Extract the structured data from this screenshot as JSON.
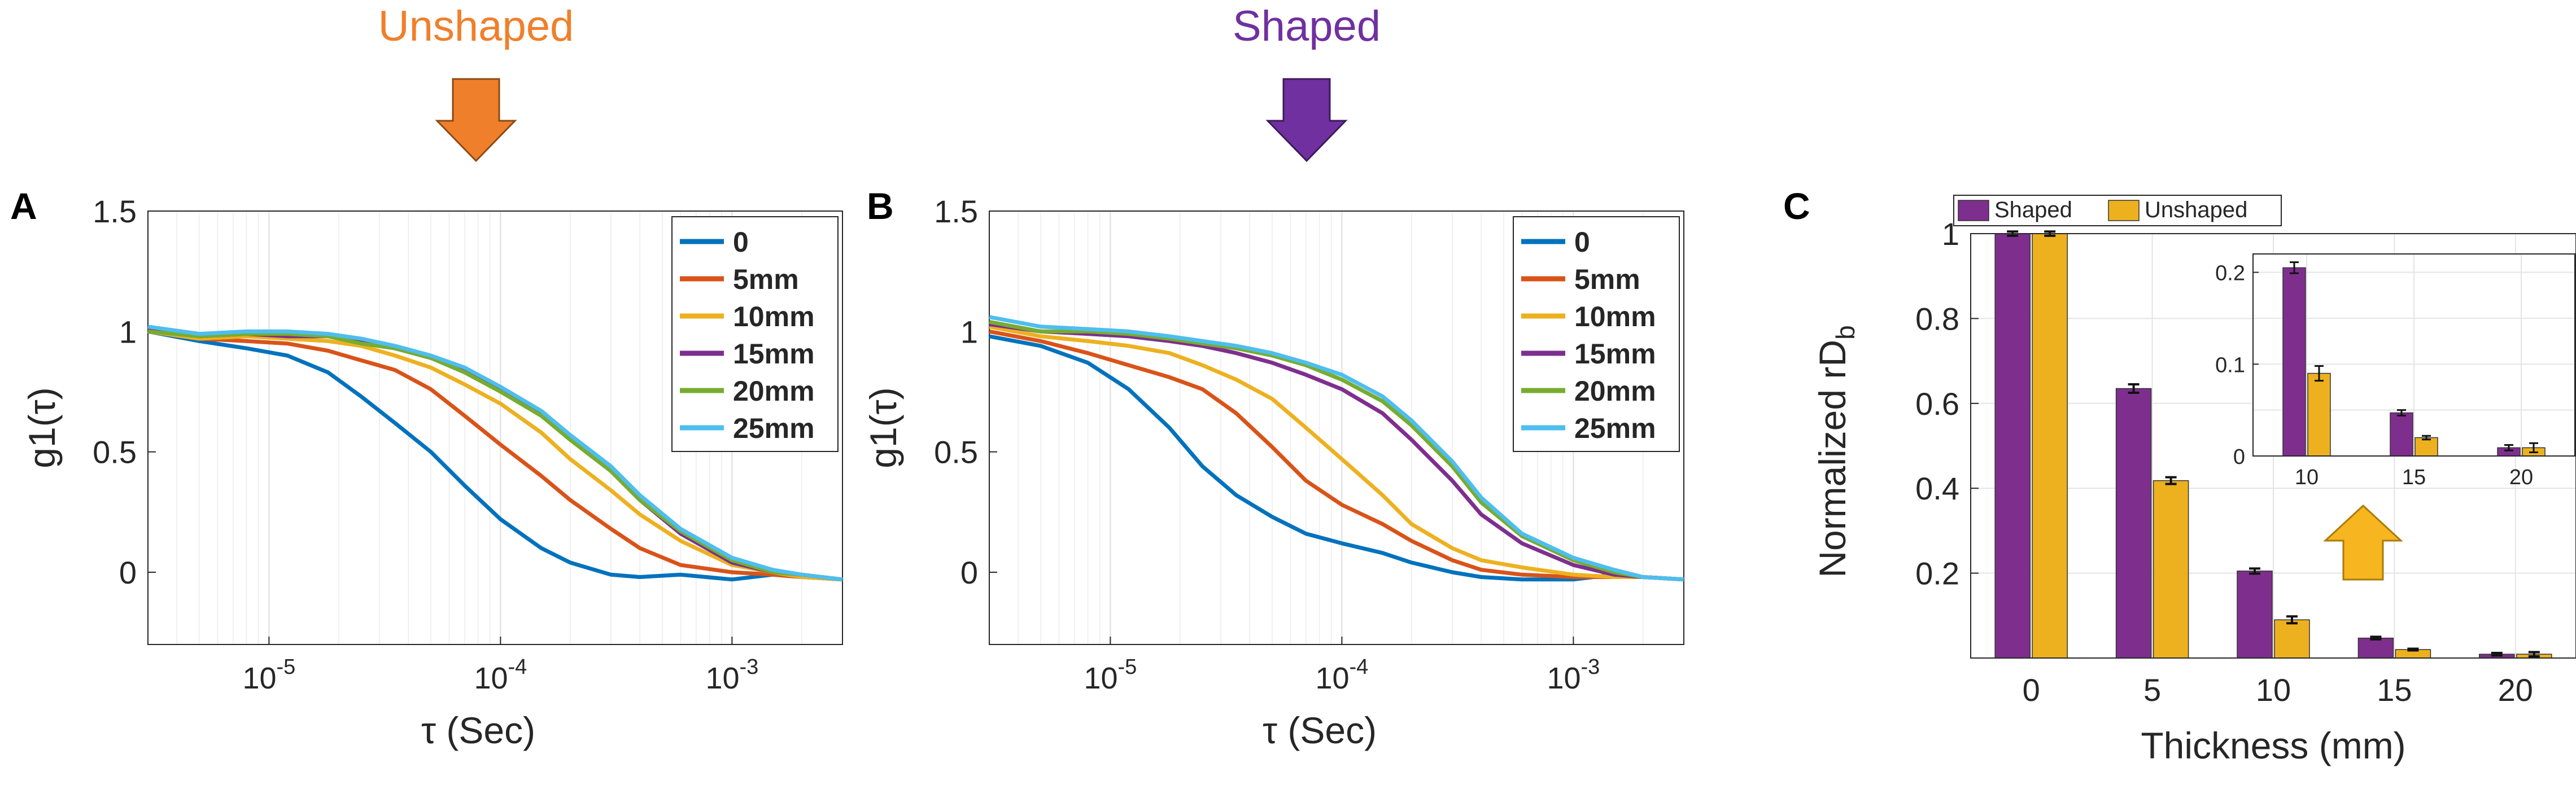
{
  "annotations": {
    "unshaped_title": "Unshaped",
    "shaped_title": "Shaped",
    "unshaped_color": "#f07f2b",
    "shaped_color": "#7030a0",
    "arrow_up_color": "#f7b51f"
  },
  "panels": {
    "A": {
      "label": "A"
    },
    "B": {
      "label": "B"
    },
    "C": {
      "label": "C"
    }
  },
  "colors": {
    "0": "#0072bd",
    "5mm": "#d95319",
    "10mm": "#edb120",
    "15mm": "#7e2f8e",
    "20mm": "#77ac30",
    "25mm": "#4dbeee",
    "shaped_bar": "#7e2f8e",
    "unshaped_bar": "#edb120"
  },
  "chart_data": [
    {
      "id": "A",
      "type": "line",
      "title": "Unshaped",
      "xlabel": "τ (Sec)",
      "ylabel": "g1(τ)",
      "xscale": "log",
      "xlim": [
        3e-06,
        0.003
      ],
      "ylim": [
        -0.3,
        1.5
      ],
      "yticks": [
        0,
        0.5,
        1,
        1.5
      ],
      "ytick_labels": [
        "0",
        "0.5",
        "1",
        "1.5"
      ],
      "xticks": [
        1e-05,
        0.0001,
        0.001
      ],
      "xtick_labels": [
        "10",
        "10",
        "10"
      ],
      "xtick_exponents": [
        "-5",
        "-4",
        "-3"
      ],
      "legend": [
        "0",
        "5mm",
        "10mm",
        "15mm",
        "20mm",
        "25mm"
      ],
      "legend_position": "top-right",
      "series": [
        {
          "name": "0",
          "x": [
            3e-06,
            5e-06,
            8e-06,
            1.2e-05,
            1.8e-05,
            2.5e-05,
            3.5e-05,
            5e-05,
            7e-05,
            0.0001,
            0.00015,
            0.0002,
            0.0003,
            0.0004,
            0.0006,
            0.001,
            0.0015,
            0.002,
            0.003
          ],
          "y": [
            1.0,
            0.96,
            0.93,
            0.9,
            0.83,
            0.73,
            0.62,
            0.5,
            0.36,
            0.22,
            0.1,
            0.04,
            -0.01,
            -0.02,
            -0.01,
            -0.03,
            -0.01,
            -0.02,
            -0.03
          ]
        },
        {
          "name": "5mm",
          "x": [
            3e-06,
            5e-06,
            8e-06,
            1.2e-05,
            1.8e-05,
            2.5e-05,
            3.5e-05,
            5e-05,
            7e-05,
            0.0001,
            0.00015,
            0.0002,
            0.0003,
            0.0004,
            0.0006,
            0.001,
            0.0015,
            0.002,
            0.003
          ],
          "y": [
            1.0,
            0.97,
            0.96,
            0.95,
            0.92,
            0.88,
            0.84,
            0.76,
            0.65,
            0.53,
            0.4,
            0.3,
            0.18,
            0.1,
            0.03,
            0.0,
            -0.01,
            -0.02,
            -0.03
          ]
        },
        {
          "name": "10mm",
          "x": [
            3e-06,
            5e-06,
            8e-06,
            1.2e-05,
            1.8e-05,
            2.5e-05,
            3.5e-05,
            5e-05,
            7e-05,
            0.0001,
            0.00015,
            0.0002,
            0.0003,
            0.0004,
            0.0006,
            0.001,
            0.0015,
            0.002,
            0.003
          ],
          "y": [
            1.0,
            0.97,
            0.98,
            0.97,
            0.96,
            0.94,
            0.9,
            0.85,
            0.78,
            0.7,
            0.58,
            0.47,
            0.34,
            0.24,
            0.13,
            0.03,
            0.0,
            -0.02,
            -0.03
          ]
        },
        {
          "name": "15mm",
          "x": [
            3e-06,
            5e-06,
            8e-06,
            1.2e-05,
            1.8e-05,
            2.5e-05,
            3.5e-05,
            5e-05,
            7e-05,
            0.0001,
            0.00015,
            0.0002,
            0.0003,
            0.0004,
            0.0006,
            0.001,
            0.0015,
            0.002,
            0.003
          ],
          "y": [
            1.01,
            0.98,
            0.99,
            0.98,
            0.98,
            0.96,
            0.93,
            0.89,
            0.84,
            0.76,
            0.66,
            0.56,
            0.42,
            0.3,
            0.16,
            0.04,
            0.0,
            -0.01,
            -0.03
          ]
        },
        {
          "name": "20mm",
          "x": [
            3e-06,
            5e-06,
            8e-06,
            1.2e-05,
            1.8e-05,
            2.5e-05,
            3.5e-05,
            5e-05,
            7e-05,
            0.0001,
            0.00015,
            0.0002,
            0.0003,
            0.0004,
            0.0006,
            0.001,
            0.0015,
            0.002,
            0.003
          ],
          "y": [
            1.0,
            0.98,
            0.99,
            0.99,
            0.98,
            0.95,
            0.93,
            0.89,
            0.83,
            0.75,
            0.65,
            0.55,
            0.42,
            0.3,
            0.17,
            0.05,
            0.0,
            -0.01,
            -0.03
          ]
        },
        {
          "name": "25mm",
          "x": [
            3e-06,
            5e-06,
            8e-06,
            1.2e-05,
            1.8e-05,
            2.5e-05,
            3.5e-05,
            5e-05,
            7e-05,
            0.0001,
            0.00015,
            0.0002,
            0.0003,
            0.0004,
            0.0006,
            0.001,
            0.0015,
            0.002,
            0.003
          ],
          "y": [
            1.02,
            0.99,
            1.0,
            1.0,
            0.99,
            0.97,
            0.94,
            0.9,
            0.85,
            0.77,
            0.67,
            0.57,
            0.44,
            0.32,
            0.18,
            0.06,
            0.01,
            -0.01,
            -0.03
          ]
        }
      ]
    },
    {
      "id": "B",
      "type": "line",
      "title": "Shaped",
      "xlabel": "τ (Sec)",
      "ylabel": "g1(τ)",
      "xscale": "log",
      "xlim": [
        3e-06,
        0.003
      ],
      "ylim": [
        -0.3,
        1.5
      ],
      "yticks": [
        0,
        0.5,
        1,
        1.5
      ],
      "ytick_labels": [
        "0",
        "0.5",
        "1",
        "1.5"
      ],
      "xticks": [
        1e-05,
        0.0001,
        0.001
      ],
      "xtick_labels": [
        "10",
        "10",
        "10"
      ],
      "xtick_exponents": [
        "-5",
        "-4",
        "-3"
      ],
      "legend": [
        "0",
        "5mm",
        "10mm",
        "15mm",
        "20mm",
        "25mm"
      ],
      "legend_position": "top-right",
      "series": [
        {
          "name": "0",
          "x": [
            3e-06,
            5e-06,
            8e-06,
            1.2e-05,
            1.8e-05,
            2.5e-05,
            3.5e-05,
            5e-05,
            7e-05,
            0.0001,
            0.00015,
            0.0002,
            0.0003,
            0.0004,
            0.0006,
            0.001,
            0.0015,
            0.002,
            0.003
          ],
          "y": [
            0.98,
            0.94,
            0.87,
            0.76,
            0.6,
            0.44,
            0.32,
            0.23,
            0.16,
            0.12,
            0.08,
            0.04,
            0.0,
            -0.02,
            -0.03,
            -0.03,
            -0.01,
            -0.02,
            -0.03
          ]
        },
        {
          "name": "5mm",
          "x": [
            3e-06,
            5e-06,
            8e-06,
            1.2e-05,
            1.8e-05,
            2.5e-05,
            3.5e-05,
            5e-05,
            7e-05,
            0.0001,
            0.00015,
            0.0002,
            0.0003,
            0.0004,
            0.0006,
            0.001,
            0.0015,
            0.002,
            0.003
          ],
          "y": [
            1.0,
            0.96,
            0.91,
            0.86,
            0.81,
            0.76,
            0.66,
            0.52,
            0.38,
            0.28,
            0.2,
            0.13,
            0.05,
            0.01,
            -0.01,
            -0.02,
            -0.02,
            -0.02,
            -0.03
          ]
        },
        {
          "name": "10mm",
          "x": [
            3e-06,
            5e-06,
            8e-06,
            1.2e-05,
            1.8e-05,
            2.5e-05,
            3.5e-05,
            5e-05,
            7e-05,
            0.0001,
            0.00015,
            0.0002,
            0.0003,
            0.0004,
            0.0006,
            0.001,
            0.0015,
            0.002,
            0.003
          ],
          "y": [
            1.02,
            0.98,
            0.96,
            0.94,
            0.91,
            0.86,
            0.8,
            0.72,
            0.6,
            0.47,
            0.32,
            0.2,
            0.1,
            0.05,
            0.02,
            -0.01,
            -0.02,
            -0.02,
            -0.03
          ]
        },
        {
          "name": "15mm",
          "x": [
            3e-06,
            5e-06,
            8e-06,
            1.2e-05,
            1.8e-05,
            2.5e-05,
            3.5e-05,
            5e-05,
            7e-05,
            0.0001,
            0.00015,
            0.0002,
            0.0003,
            0.0004,
            0.0006,
            0.001,
            0.0015,
            0.002,
            0.003
          ],
          "y": [
            1.03,
            1.0,
            0.99,
            0.98,
            0.96,
            0.94,
            0.91,
            0.87,
            0.82,
            0.76,
            0.66,
            0.55,
            0.38,
            0.24,
            0.12,
            0.03,
            -0.01,
            -0.02,
            -0.03
          ]
        },
        {
          "name": "20mm",
          "x": [
            3e-06,
            5e-06,
            8e-06,
            1.2e-05,
            1.8e-05,
            2.5e-05,
            3.5e-05,
            5e-05,
            7e-05,
            0.0001,
            0.00015,
            0.0002,
            0.0003,
            0.0004,
            0.0006,
            0.001,
            0.0015,
            0.002,
            0.003
          ],
          "y": [
            1.04,
            1.0,
            1.0,
            0.99,
            0.97,
            0.95,
            0.93,
            0.9,
            0.86,
            0.8,
            0.71,
            0.61,
            0.44,
            0.29,
            0.15,
            0.05,
            0.0,
            -0.02,
            -0.03
          ]
        },
        {
          "name": "25mm",
          "x": [
            3e-06,
            5e-06,
            8e-06,
            1.2e-05,
            1.8e-05,
            2.5e-05,
            3.5e-05,
            5e-05,
            7e-05,
            0.0001,
            0.00015,
            0.0002,
            0.0003,
            0.0004,
            0.0006,
            0.001,
            0.0015,
            0.002,
            0.003
          ],
          "y": [
            1.06,
            1.02,
            1.01,
            1.0,
            0.98,
            0.96,
            0.94,
            0.91,
            0.87,
            0.82,
            0.73,
            0.63,
            0.46,
            0.31,
            0.16,
            0.06,
            0.01,
            -0.02,
            -0.03
          ]
        }
      ]
    },
    {
      "id": "C",
      "type": "bar",
      "xlabel": "Thickness (mm)",
      "ylabel": "Normalized rD",
      "ylabel_subscript": "b",
      "categories": [
        "0",
        "5",
        "10",
        "15",
        "20"
      ],
      "ylim": [
        0,
        1
      ],
      "yticks": [
        0.2,
        0.4,
        0.6,
        0.8,
        1
      ],
      "ytick_labels": [
        "0.2",
        "0.4",
        "0.6",
        "0.8",
        "1"
      ],
      "legend_position": "top-left",
      "series": [
        {
          "name": "Shaped",
          "values": [
            1.0,
            0.635,
            0.205,
            0.047,
            0.009
          ],
          "errors": [
            0.005,
            0.01,
            0.006,
            0.003,
            0.003
          ]
        },
        {
          "name": "Unshaped",
          "values": [
            1.0,
            0.418,
            0.09,
            0.02,
            0.009
          ],
          "errors": [
            0.005,
            0.008,
            0.008,
            0.002,
            0.005
          ]
        }
      ],
      "inset": {
        "categories": [
          "10",
          "15",
          "20"
        ],
        "ylim": [
          0,
          0.22
        ],
        "yticks": [
          0,
          0.1,
          0.2
        ],
        "ytick_labels": [
          "0",
          "0.1",
          "0.2"
        ],
        "series": [
          {
            "name": "Shaped",
            "values": [
              0.205,
              0.047,
              0.009
            ],
            "errors": [
              0.006,
              0.003,
              0.003
            ]
          },
          {
            "name": "Unshaped",
            "values": [
              0.09,
              0.02,
              0.009
            ],
            "errors": [
              0.008,
              0.002,
              0.005
            ]
          }
        ]
      }
    }
  ]
}
